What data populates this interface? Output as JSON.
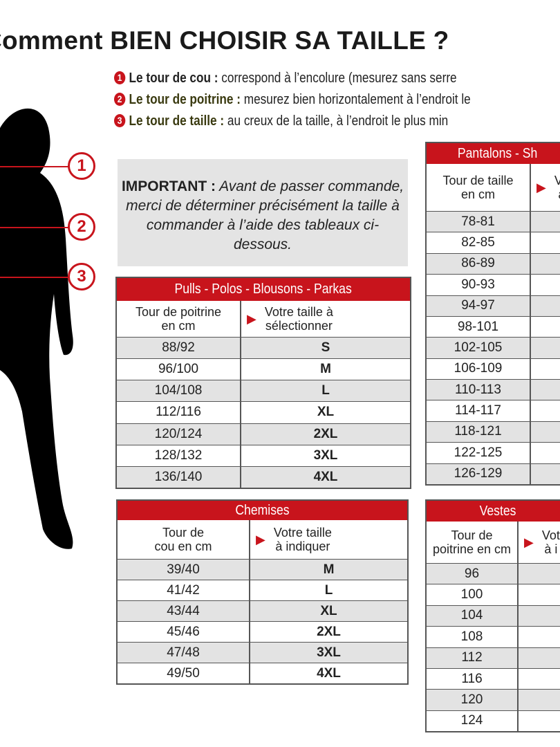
{
  "title": "Comment BIEN CHOISIR SA TAILLE ?",
  "bullets": [
    {
      "num": "1",
      "label": "Le tour de cou :",
      "text": " correspond à l’encolure (mesurez sans serre"
    },
    {
      "num": "2",
      "label": "Le tour de poitrine :",
      "text": " mesurez bien horizontalement à l’endroit le"
    },
    {
      "num": "3",
      "label": "Le tour de taille :",
      "text": " au creux de la taille, à l’endroit le plus min"
    }
  ],
  "markers": [
    "1",
    "2",
    "3"
  ],
  "important": {
    "label": "IMPORTANT :",
    "text": " Avant de passer commande, merci de déterminer précisément la taille à commander à l’aide des tableaux ci-dessous."
  },
  "colors": {
    "accent": "#c8141c",
    "row_alt": "#e3e3e3",
    "note_bg": "#e4e4e4"
  },
  "tables": {
    "pulls": {
      "title": "Pulls - Polos - Blousons - Parkas",
      "col1": "Tour de poitrine\nen cm",
      "col2": "Votre taille à\nsélectionner",
      "rows": [
        [
          "88/92",
          "S"
        ],
        [
          "96/100",
          "M"
        ],
        [
          "104/108",
          "L"
        ],
        [
          "112/116",
          "XL"
        ],
        [
          "120/124",
          "2XL"
        ],
        [
          "128/132",
          "3XL"
        ],
        [
          "136/140",
          "4XL"
        ]
      ]
    },
    "chemises": {
      "title": "Chemises",
      "col1": "Tour de\ncou en cm",
      "col2": "Votre taille\nà indiquer",
      "rows": [
        [
          "39/40",
          "M"
        ],
        [
          "41/42",
          "L"
        ],
        [
          "43/44",
          "XL"
        ],
        [
          "45/46",
          "2XL"
        ],
        [
          "47/48",
          "3XL"
        ],
        [
          "49/50",
          "4XL"
        ]
      ]
    },
    "pantalons": {
      "title": "Pantalons - Sh",
      "col1": "Tour de taille\nen cm",
      "col2": "Vo\nà",
      "rows": [
        [
          "78-81",
          ""
        ],
        [
          "82-85",
          ""
        ],
        [
          "86-89",
          ""
        ],
        [
          "90-93",
          ""
        ],
        [
          "94-97",
          ""
        ],
        [
          "98-101",
          ""
        ],
        [
          "102-105",
          ""
        ],
        [
          "106-109",
          ""
        ],
        [
          "110-113",
          ""
        ],
        [
          "114-117",
          ""
        ],
        [
          "118-121",
          ""
        ],
        [
          "122-125",
          ""
        ],
        [
          "126-129",
          ""
        ]
      ]
    },
    "vestes": {
      "title": "Vestes",
      "col1": "Tour de\npoitrine en cm",
      "col2": "Vot\nà i",
      "rows": [
        [
          "96",
          ""
        ],
        [
          "100",
          ""
        ],
        [
          "104",
          ""
        ],
        [
          "108",
          ""
        ],
        [
          "112",
          ""
        ],
        [
          "116",
          ""
        ],
        [
          "120",
          ""
        ],
        [
          "124",
          ""
        ]
      ]
    }
  }
}
